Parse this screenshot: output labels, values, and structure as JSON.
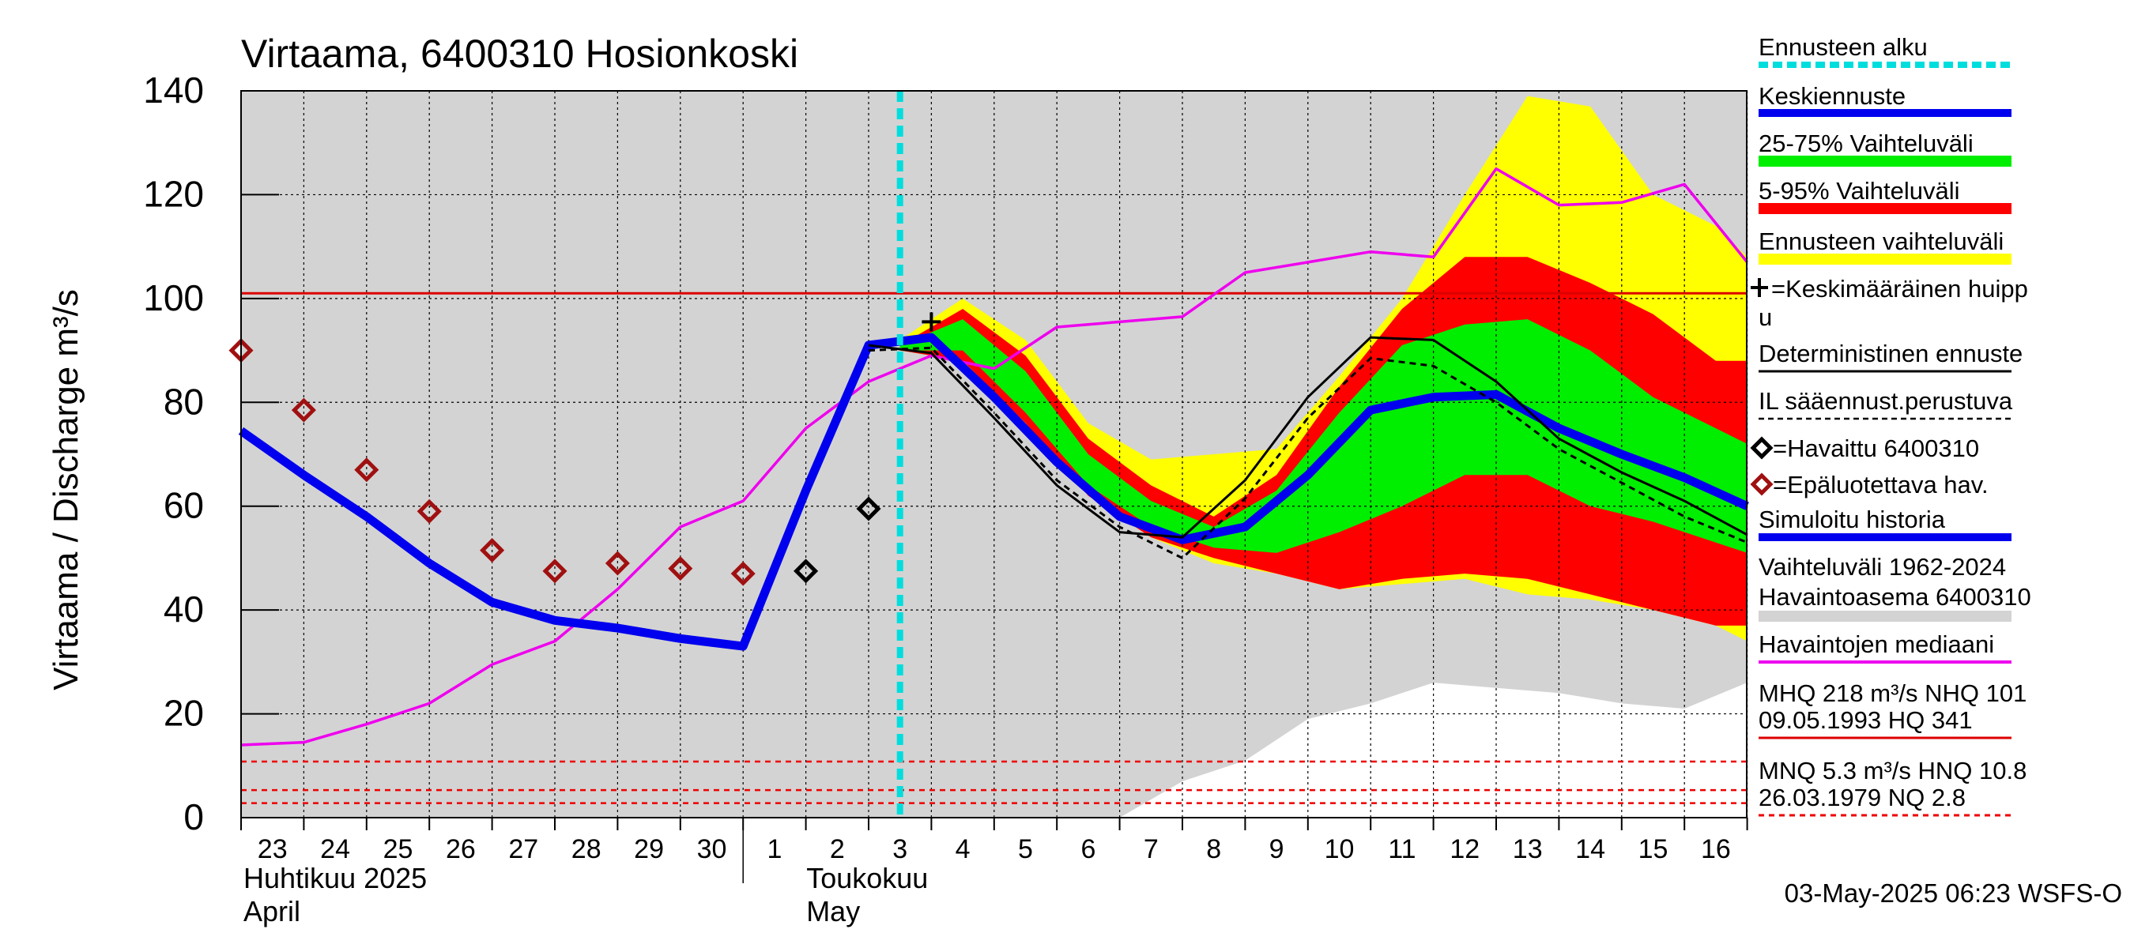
{
  "chart_data": {
    "type": "area",
    "title": "Virtaama, 6400310 Hosionkoski",
    "ylabel": "Virtaama / Discharge   m³/s",
    "ylim": [
      0,
      140
    ],
    "y_ticks": [
      "0",
      "20",
      "40",
      "60",
      "80",
      "100",
      "120",
      "140"
    ],
    "x_day_labels": [
      "23",
      "24",
      "25",
      "26",
      "27",
      "28",
      "29",
      "30",
      "1",
      "2",
      "3",
      "4",
      "5",
      "6",
      "7",
      "8",
      "9",
      "10",
      "11",
      "12",
      "13",
      "14",
      "15",
      "16"
    ],
    "month_labels": [
      {
        "fi": "Huhtikuu  2025",
        "en": "April"
      },
      {
        "fi": "Toukokuu",
        "en": "May"
      }
    ],
    "forecast_start_day": 10.5,
    "historical_band": {
      "upper": [
        [
          0,
          140
        ],
        [
          24,
          140
        ]
      ],
      "lower": [
        [
          0,
          0
        ],
        [
          14,
          0
        ],
        [
          15,
          7
        ],
        [
          16,
          11
        ],
        [
          17,
          19
        ],
        [
          18,
          22
        ],
        [
          19,
          26
        ],
        [
          20,
          25
        ],
        [
          21,
          24
        ],
        [
          22,
          22
        ],
        [
          23,
          21
        ],
        [
          24,
          26
        ]
      ]
    },
    "ennusteen_vaihteluvali": {
      "upper": [
        [
          10.5,
          92
        ],
        [
          11,
          96
        ],
        [
          11.5,
          100
        ],
        [
          12.5,
          92
        ],
        [
          13.5,
          76
        ],
        [
          14.5,
          69
        ],
        [
          15.5,
          70
        ],
        [
          16.5,
          71
        ],
        [
          17.5,
          85
        ],
        [
          18.5,
          100
        ],
        [
          19.5,
          120
        ],
        [
          20.5,
          139
        ],
        [
          21.5,
          137
        ],
        [
          22.5,
          120
        ],
        [
          23.5,
          114
        ],
        [
          24,
          108
        ]
      ],
      "lower": [
        [
          10.5,
          90
        ],
        [
          11.5,
          88
        ],
        [
          12.5,
          76
        ],
        [
          13.5,
          63
        ],
        [
          14.5,
          54
        ],
        [
          15.5,
          49
        ],
        [
          16.5,
          47
        ],
        [
          17.5,
          44
        ],
        [
          18.5,
          45
        ],
        [
          19.5,
          46
        ],
        [
          20.5,
          43
        ],
        [
          21.5,
          42
        ],
        [
          22.5,
          40
        ],
        [
          23.5,
          37
        ],
        [
          24,
          34
        ]
      ]
    },
    "band_5_95": {
      "upper": [
        [
          10.5,
          91
        ],
        [
          11.5,
          98
        ],
        [
          12.5,
          89
        ],
        [
          13.5,
          73
        ],
        [
          14.5,
          64
        ],
        [
          15.5,
          58
        ],
        [
          16.5,
          66
        ],
        [
          17.5,
          83
        ],
        [
          18.5,
          98
        ],
        [
          19.5,
          108
        ],
        [
          20.5,
          108
        ],
        [
          21.5,
          103
        ],
        [
          22.5,
          97
        ],
        [
          23.5,
          88
        ],
        [
          24,
          88
        ]
      ],
      "lower": [
        [
          10.5,
          90
        ],
        [
          11.5,
          88
        ],
        [
          12.5,
          76
        ],
        [
          13.5,
          62
        ],
        [
          14.5,
          54
        ],
        [
          15.5,
          50
        ],
        [
          16.5,
          47
        ],
        [
          17.5,
          44
        ],
        [
          18.5,
          46
        ],
        [
          19.5,
          47
        ],
        [
          20.5,
          46
        ],
        [
          21.5,
          43
        ],
        [
          22.5,
          40
        ],
        [
          23.5,
          37
        ],
        [
          24,
          37
        ]
      ]
    },
    "band_25_75": {
      "upper": [
        [
          10.5,
          91
        ],
        [
          11.5,
          96
        ],
        [
          12.5,
          86
        ],
        [
          13.5,
          70
        ],
        [
          14.5,
          61
        ],
        [
          15.5,
          56
        ],
        [
          16.5,
          63
        ],
        [
          17.5,
          78
        ],
        [
          18.5,
          91
        ],
        [
          19.5,
          95
        ],
        [
          20.5,
          96
        ],
        [
          21.5,
          90
        ],
        [
          22.5,
          81
        ],
        [
          23.5,
          75
        ],
        [
          24,
          72
        ]
      ],
      "lower": [
        [
          10.5,
          90
        ],
        [
          11.5,
          90
        ],
        [
          12.5,
          78
        ],
        [
          13.5,
          64
        ],
        [
          14.5,
          56
        ],
        [
          15.5,
          52
        ],
        [
          16.5,
          51
        ],
        [
          17.5,
          55
        ],
        [
          18.5,
          60
        ],
        [
          19.5,
          66
        ],
        [
          20.5,
          66
        ],
        [
          21.5,
          60
        ],
        [
          22.5,
          57
        ],
        [
          23.5,
          53
        ],
        [
          24,
          51
        ]
      ]
    },
    "series": [
      {
        "name": "Havaintojen mediaani",
        "color": "#ee00ee",
        "points": [
          [
            0,
            14
          ],
          [
            1,
            14.5
          ],
          [
            2,
            18
          ],
          [
            3,
            22
          ],
          [
            4,
            29.5
          ],
          [
            5,
            34
          ],
          [
            6,
            44
          ],
          [
            7,
            56
          ],
          [
            8,
            61
          ],
          [
            9,
            75
          ],
          [
            10,
            84
          ],
          [
            11,
            89
          ],
          [
            12,
            86.5
          ],
          [
            13,
            94.5
          ],
          [
            14,
            95.5
          ],
          [
            15,
            96.5
          ],
          [
            16,
            105
          ],
          [
            17,
            107
          ],
          [
            18,
            109
          ],
          [
            19,
            108
          ],
          [
            20,
            125
          ],
          [
            21,
            118
          ],
          [
            22,
            118.5
          ],
          [
            23,
            122
          ],
          [
            24,
            107
          ]
        ]
      },
      {
        "name": "Keskiennuste",
        "color": "#0000ee",
        "points": [
          [
            0,
            74.5
          ],
          [
            1,
            66
          ],
          [
            2,
            58
          ],
          [
            3,
            49
          ],
          [
            4,
            41.5
          ],
          [
            5,
            38
          ],
          [
            6,
            36.5
          ],
          [
            7,
            34.5
          ],
          [
            8,
            33
          ],
          [
            9,
            63
          ],
          [
            10,
            91
          ],
          [
            11,
            92.5
          ],
          [
            12,
            81
          ],
          [
            13,
            68.5
          ],
          [
            14,
            58
          ],
          [
            15,
            53.5
          ],
          [
            16,
            56
          ],
          [
            17,
            66
          ],
          [
            18,
            78.5
          ],
          [
            19,
            81
          ],
          [
            20,
            81.5
          ],
          [
            21,
            75
          ],
          [
            22,
            70
          ],
          [
            23,
            65.5
          ],
          [
            24,
            60
          ]
        ]
      },
      {
        "name": "Deterministinen ennuste",
        "color": "#000000",
        "points": [
          [
            10,
            91
          ],
          [
            11,
            89.5
          ],
          [
            12,
            77
          ],
          [
            13,
            64
          ],
          [
            14,
            55
          ],
          [
            15,
            54
          ],
          [
            16,
            65
          ],
          [
            17,
            81
          ],
          [
            18,
            92.5
          ],
          [
            19,
            92
          ],
          [
            20,
            84
          ],
          [
            21,
            73
          ],
          [
            22,
            66.5
          ],
          [
            23,
            61
          ],
          [
            24,
            54.5
          ]
        ]
      },
      {
        "name": "IL sääennust.perustuva",
        "color": "#000000",
        "dashed": true,
        "points": [
          [
            10,
            90
          ],
          [
            11,
            90.5
          ],
          [
            12,
            78
          ],
          [
            13,
            65
          ],
          [
            14,
            56
          ],
          [
            15,
            50
          ],
          [
            16,
            61.5
          ],
          [
            17,
            77
          ],
          [
            18,
            88.5
          ],
          [
            19,
            87
          ],
          [
            20,
            80
          ],
          [
            21,
            71
          ],
          [
            22,
            64.5
          ],
          [
            23,
            58
          ],
          [
            24,
            53
          ]
        ]
      }
    ],
    "observed": [
      {
        "x": 9,
        "y": 47.5
      },
      {
        "x": 10,
        "y": 59.5
      }
    ],
    "unreliable_observed": [
      {
        "x": 0,
        "y": 90
      },
      {
        "x": 1,
        "y": 78.5
      },
      {
        "x": 2,
        "y": 67
      },
      {
        "x": 3,
        "y": 59
      },
      {
        "x": 4,
        "y": 51.5
      },
      {
        "x": 5,
        "y": 47.5
      },
      {
        "x": 6,
        "y": 49
      },
      {
        "x": 7,
        "y": 48
      },
      {
        "x": 8,
        "y": 47
      }
    ],
    "mean_peak": {
      "x": 11,
      "y": 95.5
    },
    "reference_lines": {
      "NHQ": 101,
      "HNQ": 10.8,
      "MNQ": 5.3,
      "NQ": 2.8
    },
    "legend": [
      "Ennusteen alku",
      "Keskiennuste",
      "25-75% Vaihteluväli",
      "5-95% Vaihteluväli",
      "Ennusteen vaihteluväli",
      "=Keskimääräinen huipp",
      "u",
      "Deterministinen ennuste",
      "IL sääennust.perustuva",
      "=Havaittu 6400310",
      "=Epäluotettava hav.",
      "Simuloitu historia",
      "Vaihteluväli 1962-2024",
      " Havaintoasema 6400310",
      "Havaintojen mediaani",
      "MHQ  218 m³/s NHQ  101",
      "09.05.1993 HQ  341",
      "MNQ  5.3 m³/s HNQ 10.8",
      "26.03.1979 NQ  2.8"
    ],
    "timestamp": "03-May-2025 06:23 WSFS-O"
  }
}
